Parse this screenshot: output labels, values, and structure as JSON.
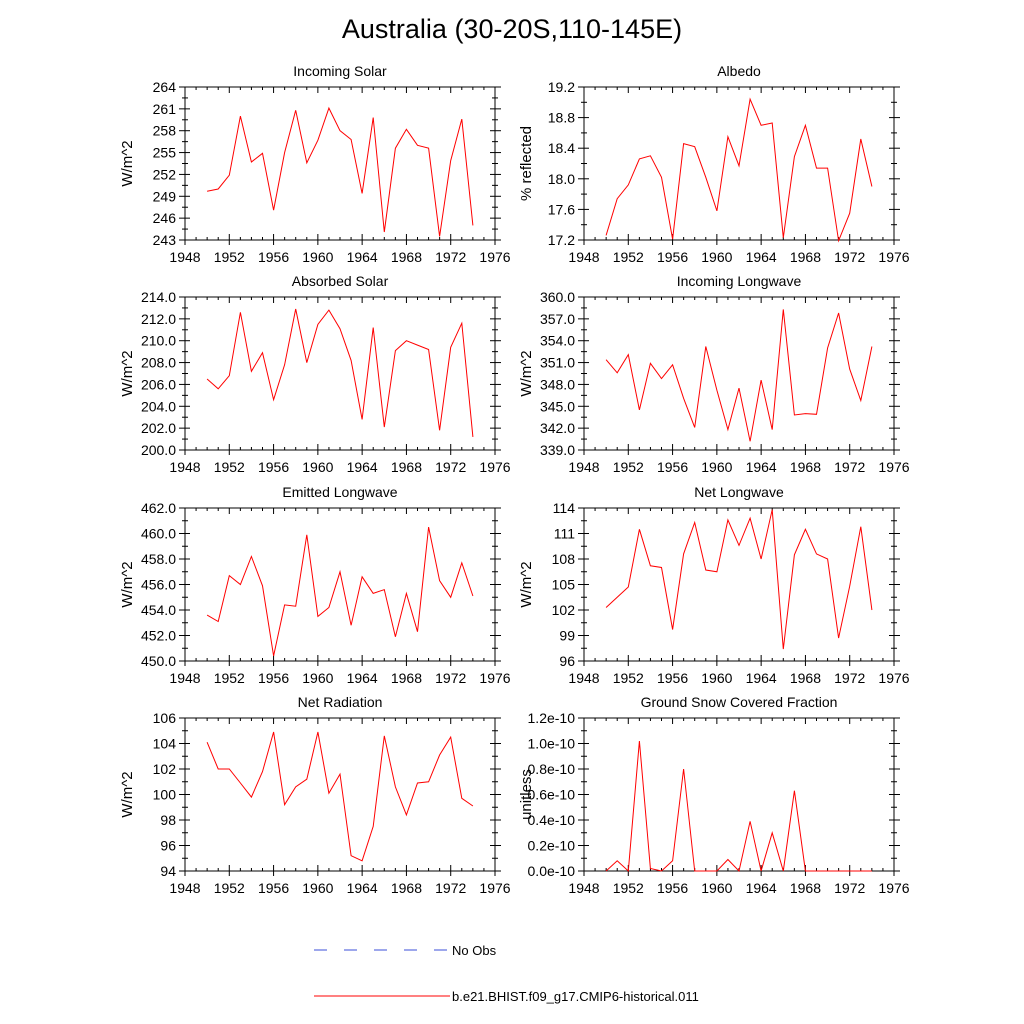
{
  "title": "Australia (30-20S,110-145E)",
  "legend": {
    "obs_label": "No Obs",
    "obs_color": "#3b4fd8",
    "model_label": "b.e21.BHIST.f09_g17.CMIP6-historical.011",
    "model_color": "#ff0000"
  },
  "chart_data": [
    {
      "type": "line",
      "title": "Incoming Solar",
      "ylabel": "W/m^2",
      "xlabel": "",
      "xlim": [
        1948,
        1976
      ],
      "ylim": [
        243,
        264
      ],
      "xticks": [
        1948,
        1952,
        1956,
        1960,
        1964,
        1968,
        1972,
        1976
      ],
      "yticks": [
        "243",
        "246",
        "249",
        "252",
        "255",
        "258",
        "261",
        "264"
      ],
      "yticks_values": [
        243,
        246,
        249,
        252,
        255,
        258,
        261,
        264
      ],
      "series": [
        {
          "x": [
            1950,
            1951,
            1952,
            1953,
            1954,
            1955,
            1956,
            1957,
            1958,
            1959,
            1960,
            1961,
            1962,
            1963,
            1964,
            1965,
            1966,
            1967,
            1968,
            1969,
            1970,
            1971,
            1972,
            1973,
            1974
          ],
          "values": [
            249.7,
            250.0,
            251.9,
            260.0,
            253.7,
            254.9,
            247.1,
            255.0,
            260.8,
            253.6,
            256.7,
            261.1,
            258.0,
            256.8,
            249.4,
            259.8,
            244.1,
            255.6,
            258.2,
            256.0,
            255.6,
            243.5,
            253.9,
            259.6,
            245.0
          ]
        }
      ]
    },
    {
      "type": "line",
      "title": "Albedo",
      "ylabel": "% reflected",
      "xlabel": "",
      "xlim": [
        1948,
        1976
      ],
      "ylim": [
        17.2,
        19.2
      ],
      "xticks": [
        1948,
        1952,
        1956,
        1960,
        1964,
        1968,
        1972,
        1976
      ],
      "yticks": [
        "17.2",
        "17.6",
        "18.0",
        "18.4",
        "18.8",
        "19.2"
      ],
      "yticks_values": [
        17.2,
        17.6,
        18.0,
        18.4,
        18.8,
        19.2
      ],
      "series": [
        {
          "x": [
            1950,
            1951,
            1952,
            1953,
            1954,
            1955,
            1956,
            1957,
            1958,
            1959,
            1960,
            1961,
            1962,
            1963,
            1964,
            1965,
            1966,
            1967,
            1968,
            1969,
            1970,
            1971,
            1972,
            1973,
            1974
          ],
          "values": [
            17.26,
            17.74,
            17.92,
            18.26,
            18.3,
            18.02,
            17.21,
            18.46,
            18.42,
            18.02,
            17.58,
            18.55,
            18.17,
            19.04,
            18.7,
            18.73,
            17.23,
            18.29,
            18.7,
            18.14,
            18.14,
            17.19,
            17.55,
            18.52,
            17.9
          ]
        }
      ]
    },
    {
      "type": "line",
      "title": "Absorbed Solar",
      "ylabel": "W/m^2",
      "xlabel": "",
      "xlim": [
        1948,
        1976
      ],
      "ylim": [
        200,
        214
      ],
      "xticks": [
        1948,
        1952,
        1956,
        1960,
        1964,
        1968,
        1972,
        1976
      ],
      "yticks": [
        "200.0",
        "202.0",
        "204.0",
        "206.0",
        "208.0",
        "210.0",
        "212.0",
        "214.0"
      ],
      "yticks_values": [
        200,
        202,
        204,
        206,
        208,
        210,
        212,
        214
      ],
      "series": [
        {
          "x": [
            1950,
            1951,
            1952,
            1953,
            1954,
            1955,
            1956,
            1957,
            1958,
            1959,
            1960,
            1961,
            1962,
            1963,
            1964,
            1965,
            1966,
            1967,
            1968,
            1969,
            1970,
            1971,
            1972,
            1973,
            1974
          ],
          "values": [
            206.5,
            205.6,
            206.8,
            212.6,
            207.2,
            208.9,
            204.6,
            207.8,
            212.9,
            208.0,
            211.5,
            212.8,
            211.1,
            208.2,
            202.8,
            211.2,
            202.1,
            209.1,
            210.0,
            209.6,
            209.2,
            201.8,
            209.4,
            211.6,
            201.2
          ]
        }
      ]
    },
    {
      "type": "line",
      "title": "Incoming Longwave",
      "ylabel": "W/m^2",
      "xlabel": "",
      "xlim": [
        1948,
        1976
      ],
      "ylim": [
        339,
        360
      ],
      "xticks": [
        1948,
        1952,
        1956,
        1960,
        1964,
        1968,
        1972,
        1976
      ],
      "yticks": [
        "339.0",
        "342.0",
        "345.0",
        "348.0",
        "351.0",
        "354.0",
        "357.0",
        "360.0"
      ],
      "yticks_values": [
        339,
        342,
        345,
        348,
        351,
        354,
        357,
        360
      ],
      "series": [
        {
          "x": [
            1950,
            1951,
            1952,
            1953,
            1954,
            1955,
            1956,
            1957,
            1958,
            1959,
            1960,
            1961,
            1962,
            1963,
            1964,
            1965,
            1966,
            1967,
            1968,
            1969,
            1970,
            1971,
            1972,
            1973,
            1974
          ],
          "values": [
            351.4,
            349.6,
            352.1,
            344.5,
            350.9,
            348.8,
            350.7,
            346.1,
            342.1,
            353.2,
            347.2,
            341.8,
            347.5,
            340.2,
            348.6,
            341.8,
            358.3,
            343.8,
            344.0,
            343.9,
            353.0,
            357.8,
            350.1,
            345.8,
            353.2
          ]
        }
      ]
    },
    {
      "type": "line",
      "title": "Emitted Longwave",
      "ylabel": "W/m^2",
      "xlabel": "",
      "xlim": [
        1948,
        1976
      ],
      "ylim": [
        450,
        462
      ],
      "xticks": [
        1948,
        1952,
        1956,
        1960,
        1964,
        1968,
        1972,
        1976
      ],
      "yticks": [
        "450.0",
        "452.0",
        "454.0",
        "456.0",
        "458.0",
        "460.0",
        "462.0"
      ],
      "yticks_values": [
        450,
        452,
        454,
        456,
        458,
        460,
        462
      ],
      "series": [
        {
          "x": [
            1950,
            1951,
            1952,
            1953,
            1954,
            1955,
            1956,
            1957,
            1958,
            1959,
            1960,
            1961,
            1962,
            1963,
            1964,
            1965,
            1966,
            1967,
            1968,
            1969,
            1970,
            1971,
            1972,
            1973,
            1974
          ],
          "values": [
            453.6,
            453.1,
            456.7,
            456.0,
            458.2,
            455.9,
            450.4,
            454.4,
            454.3,
            459.9,
            453.5,
            454.2,
            457.0,
            452.8,
            456.6,
            455.3,
            455.6,
            451.9,
            455.3,
            452.3,
            460.5,
            456.3,
            455.0,
            457.7,
            455.1
          ]
        }
      ]
    },
    {
      "type": "line",
      "title": "Net Longwave",
      "ylabel": "W/m^2",
      "xlabel": "",
      "xlim": [
        1948,
        1976
      ],
      "ylim": [
        96,
        114
      ],
      "xticks": [
        1948,
        1952,
        1956,
        1960,
        1964,
        1968,
        1972,
        1976
      ],
      "yticks": [
        "96",
        "99",
        "102",
        "105",
        "108",
        "111",
        "114"
      ],
      "yticks_values": [
        96,
        99,
        102,
        105,
        108,
        111,
        114
      ],
      "series": [
        {
          "x": [
            1950,
            1951,
            1952,
            1953,
            1954,
            1955,
            1956,
            1957,
            1958,
            1959,
            1960,
            1961,
            1962,
            1963,
            1964,
            1965,
            1966,
            1967,
            1968,
            1969,
            1970,
            1971,
            1972,
            1973,
            1974
          ],
          "values": [
            102.3,
            103.5,
            104.7,
            111.5,
            107.2,
            107.0,
            99.7,
            108.6,
            112.3,
            106.7,
            106.5,
            112.6,
            109.6,
            112.8,
            108.0,
            113.8,
            97.4,
            108.5,
            111.5,
            108.6,
            108.0,
            98.7,
            104.8,
            111.8,
            102.0
          ]
        }
      ]
    },
    {
      "type": "line",
      "title": "Net Radiation",
      "ylabel": "W/m^2",
      "xlabel": "",
      "xlim": [
        1948,
        1976
      ],
      "ylim": [
        94,
        106
      ],
      "xticks": [
        1948,
        1952,
        1956,
        1960,
        1964,
        1968,
        1972,
        1976
      ],
      "yticks": [
        "94",
        "96",
        "98",
        "100",
        "102",
        "104",
        "106"
      ],
      "yticks_values": [
        94,
        96,
        98,
        100,
        102,
        104,
        106
      ],
      "series": [
        {
          "x": [
            1950,
            1951,
            1952,
            1953,
            1954,
            1955,
            1956,
            1957,
            1958,
            1959,
            1960,
            1961,
            1962,
            1963,
            1964,
            1965,
            1966,
            1967,
            1968,
            1969,
            1970,
            1971,
            1972,
            1973,
            1974
          ],
          "values": [
            104.1,
            102.0,
            102.0,
            100.9,
            99.8,
            101.8,
            104.9,
            99.2,
            100.6,
            101.2,
            104.9,
            100.1,
            101.6,
            95.2,
            94.8,
            97.5,
            104.6,
            100.6,
            98.4,
            100.9,
            101.0,
            103.1,
            104.5,
            99.7,
            99.1
          ]
        }
      ]
    },
    {
      "type": "line",
      "title": "Ground Snow Covered Fraction",
      "ylabel": "unitless",
      "xlabel": "",
      "xlim": [
        1948,
        1976
      ],
      "ylim": [
        0,
        1.2e-10
      ],
      "xticks": [
        1948,
        1952,
        1956,
        1960,
        1964,
        1968,
        1972,
        1976
      ],
      "yticks": [
        "0.0e-10",
        "0.2e-10",
        "0.4e-10",
        "0.6e-10",
        "0.8e-10",
        "1.0e-10",
        "1.2e-10"
      ],
      "yticks_values": [
        0,
        2e-11,
        4e-11,
        6e-11,
        8e-11,
        1e-10,
        1.2e-10
      ],
      "series": [
        {
          "x": [
            1950,
            1951,
            1952,
            1953,
            1954,
            1955,
            1956,
            1957,
            1958,
            1959,
            1960,
            1961,
            1962,
            1963,
            1964,
            1965,
            1966,
            1967,
            1968,
            1969,
            1970,
            1971,
            1972,
            1973,
            1974
          ],
          "values": [
            0,
            8e-12,
            0,
            1.02e-10,
            2e-12,
            0,
            8e-12,
            8e-11,
            0,
            0,
            0,
            9e-12,
            0,
            3.9e-11,
            0,
            3e-11,
            0,
            6.3e-11,
            0,
            0,
            0,
            0,
            0,
            0,
            0
          ]
        }
      ]
    }
  ]
}
